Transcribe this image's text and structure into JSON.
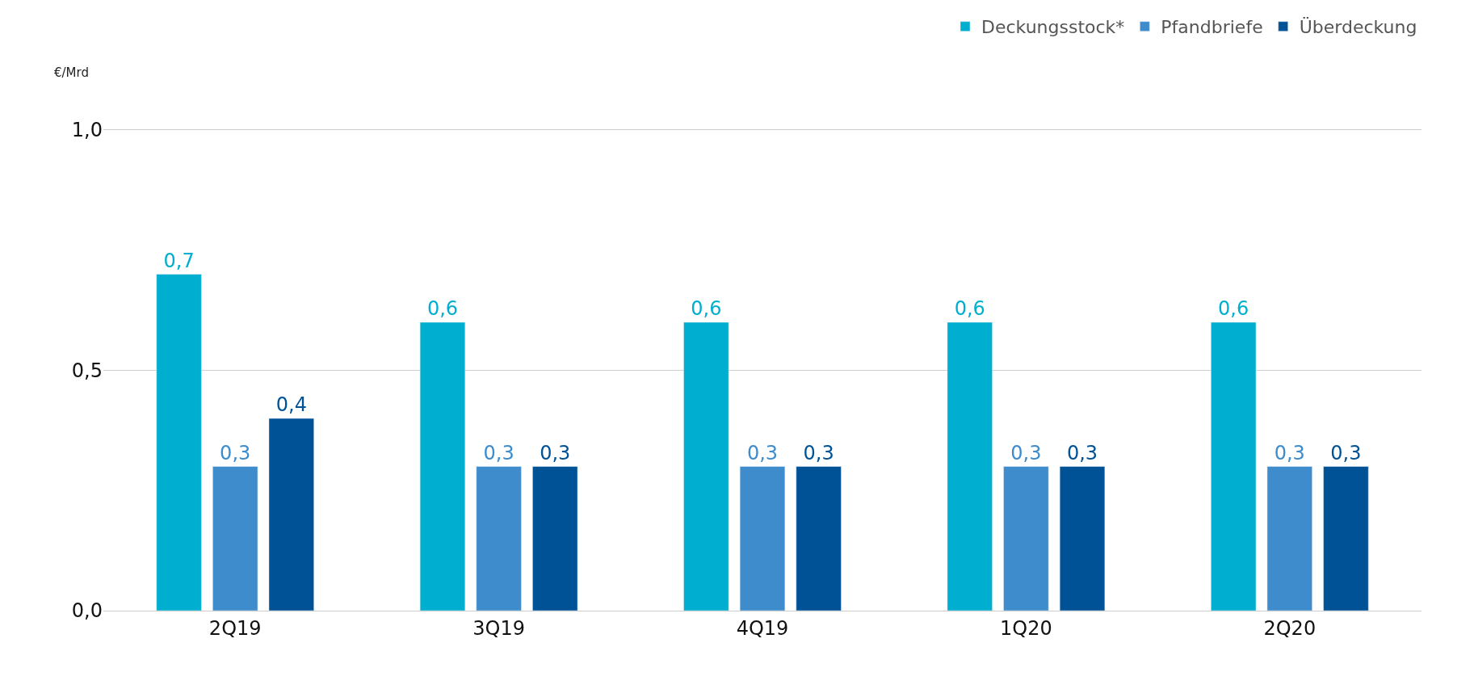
{
  "chart_data": {
    "type": "bar",
    "ylabel": "€/Mrd",
    "categories": [
      "2Q19",
      "3Q19",
      "4Q19",
      "1Q20",
      "2Q20"
    ],
    "series": [
      {
        "name": "Deckungsstock*",
        "color": "#00aed0",
        "values": [
          0.7,
          0.6,
          0.6,
          0.6,
          0.6
        ],
        "value_labels": [
          "0,7",
          "0,6",
          "0,6",
          "0,6",
          "0,6"
        ]
      },
      {
        "name": "Pfandbriefe",
        "color": "#3e8ccc",
        "values": [
          0.3,
          0.3,
          0.3,
          0.3,
          0.3
        ],
        "value_labels": [
          "0,3",
          "0,3",
          "0,3",
          "0,3",
          "0,3"
        ]
      },
      {
        "name": "Überdeckung",
        "color": "#005296",
        "values": [
          0.4,
          0.3,
          0.3,
          0.3,
          0.3
        ],
        "value_labels": [
          "0,4",
          "0,3",
          "0,3",
          "0,3",
          "0,3"
        ]
      }
    ],
    "ylim": [
      0,
      1.0
    ],
    "yticks": [
      {
        "value": 0,
        "label": "0,0"
      },
      {
        "value": 0.5,
        "label": "0,5"
      },
      {
        "value": 1.0,
        "label": "1,0"
      }
    ],
    "grid": "y",
    "legend": "top right"
  }
}
